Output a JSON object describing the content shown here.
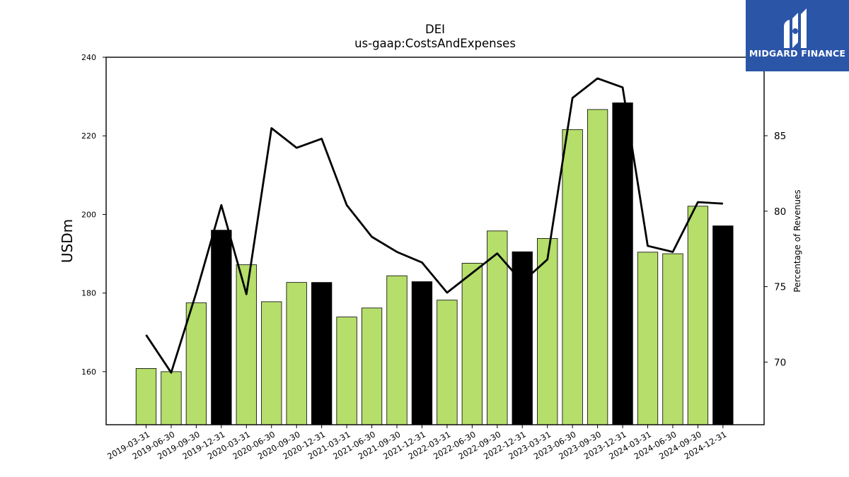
{
  "chart_data": {
    "type": "bar",
    "title": "DEI",
    "subtitle": "us-gaap:CostsAndExpenses",
    "ylabel": "USDm",
    "y2label": "Percentage of Revenues",
    "ylim": [
      146.5,
      240
    ],
    "y2lim": [
      65.85,
      90.2
    ],
    "yticks": [
      160,
      180,
      200,
      220,
      240
    ],
    "y2ticks": [
      70,
      75,
      80,
      85
    ],
    "categories": [
      "2019-03-31",
      "2019-06-30",
      "2019-09-30",
      "2019-12-31",
      "2020-03-31",
      "2020-06-30",
      "2020-09-30",
      "2020-12-31",
      "2021-03-31",
      "2021-06-30",
      "2021-09-30",
      "2021-12-31",
      "2022-03-31",
      "2022-06-30",
      "2022-09-30",
      "2022-12-31",
      "2023-03-31",
      "2023-06-30",
      "2023-09-30",
      "2023-12-31",
      "2024-03-31",
      "2024-06-30",
      "2024-09-30",
      "2024-12-31"
    ],
    "series": [
      {
        "type": "bar",
        "axis": "left",
        "values": [
          160.8,
          160.0,
          177.5,
          196.0,
          187.2,
          177.8,
          182.7,
          182.7,
          173.9,
          176.2,
          184.4,
          182.9,
          178.2,
          187.6,
          195.8,
          190.5,
          193.9,
          221.6,
          226.7,
          228.4,
          190.4,
          190.0,
          202.1,
          197.1
        ],
        "highlight": [
          false,
          false,
          false,
          true,
          false,
          false,
          false,
          true,
          false,
          false,
          false,
          true,
          false,
          false,
          false,
          true,
          false,
          false,
          false,
          true,
          false,
          false,
          false,
          true
        ]
      },
      {
        "type": "line",
        "axis": "right",
        "values": [
          71.8,
          69.3,
          74.6,
          80.4,
          74.5,
          85.5,
          84.2,
          84.8,
          80.4,
          78.3,
          77.3,
          76.6,
          74.6,
          75.9,
          77.2,
          75.3,
          76.8,
          87.5,
          88.8,
          88.2,
          77.7,
          77.3,
          80.6,
          80.5
        ]
      }
    ],
    "colors": {
      "bar": "#b5de6a",
      "highlight": "#000000",
      "line": "#000000"
    },
    "grid": false
  },
  "logo": {
    "text": "MIDGARD FINANCE",
    "background": "#2b56a8"
  }
}
